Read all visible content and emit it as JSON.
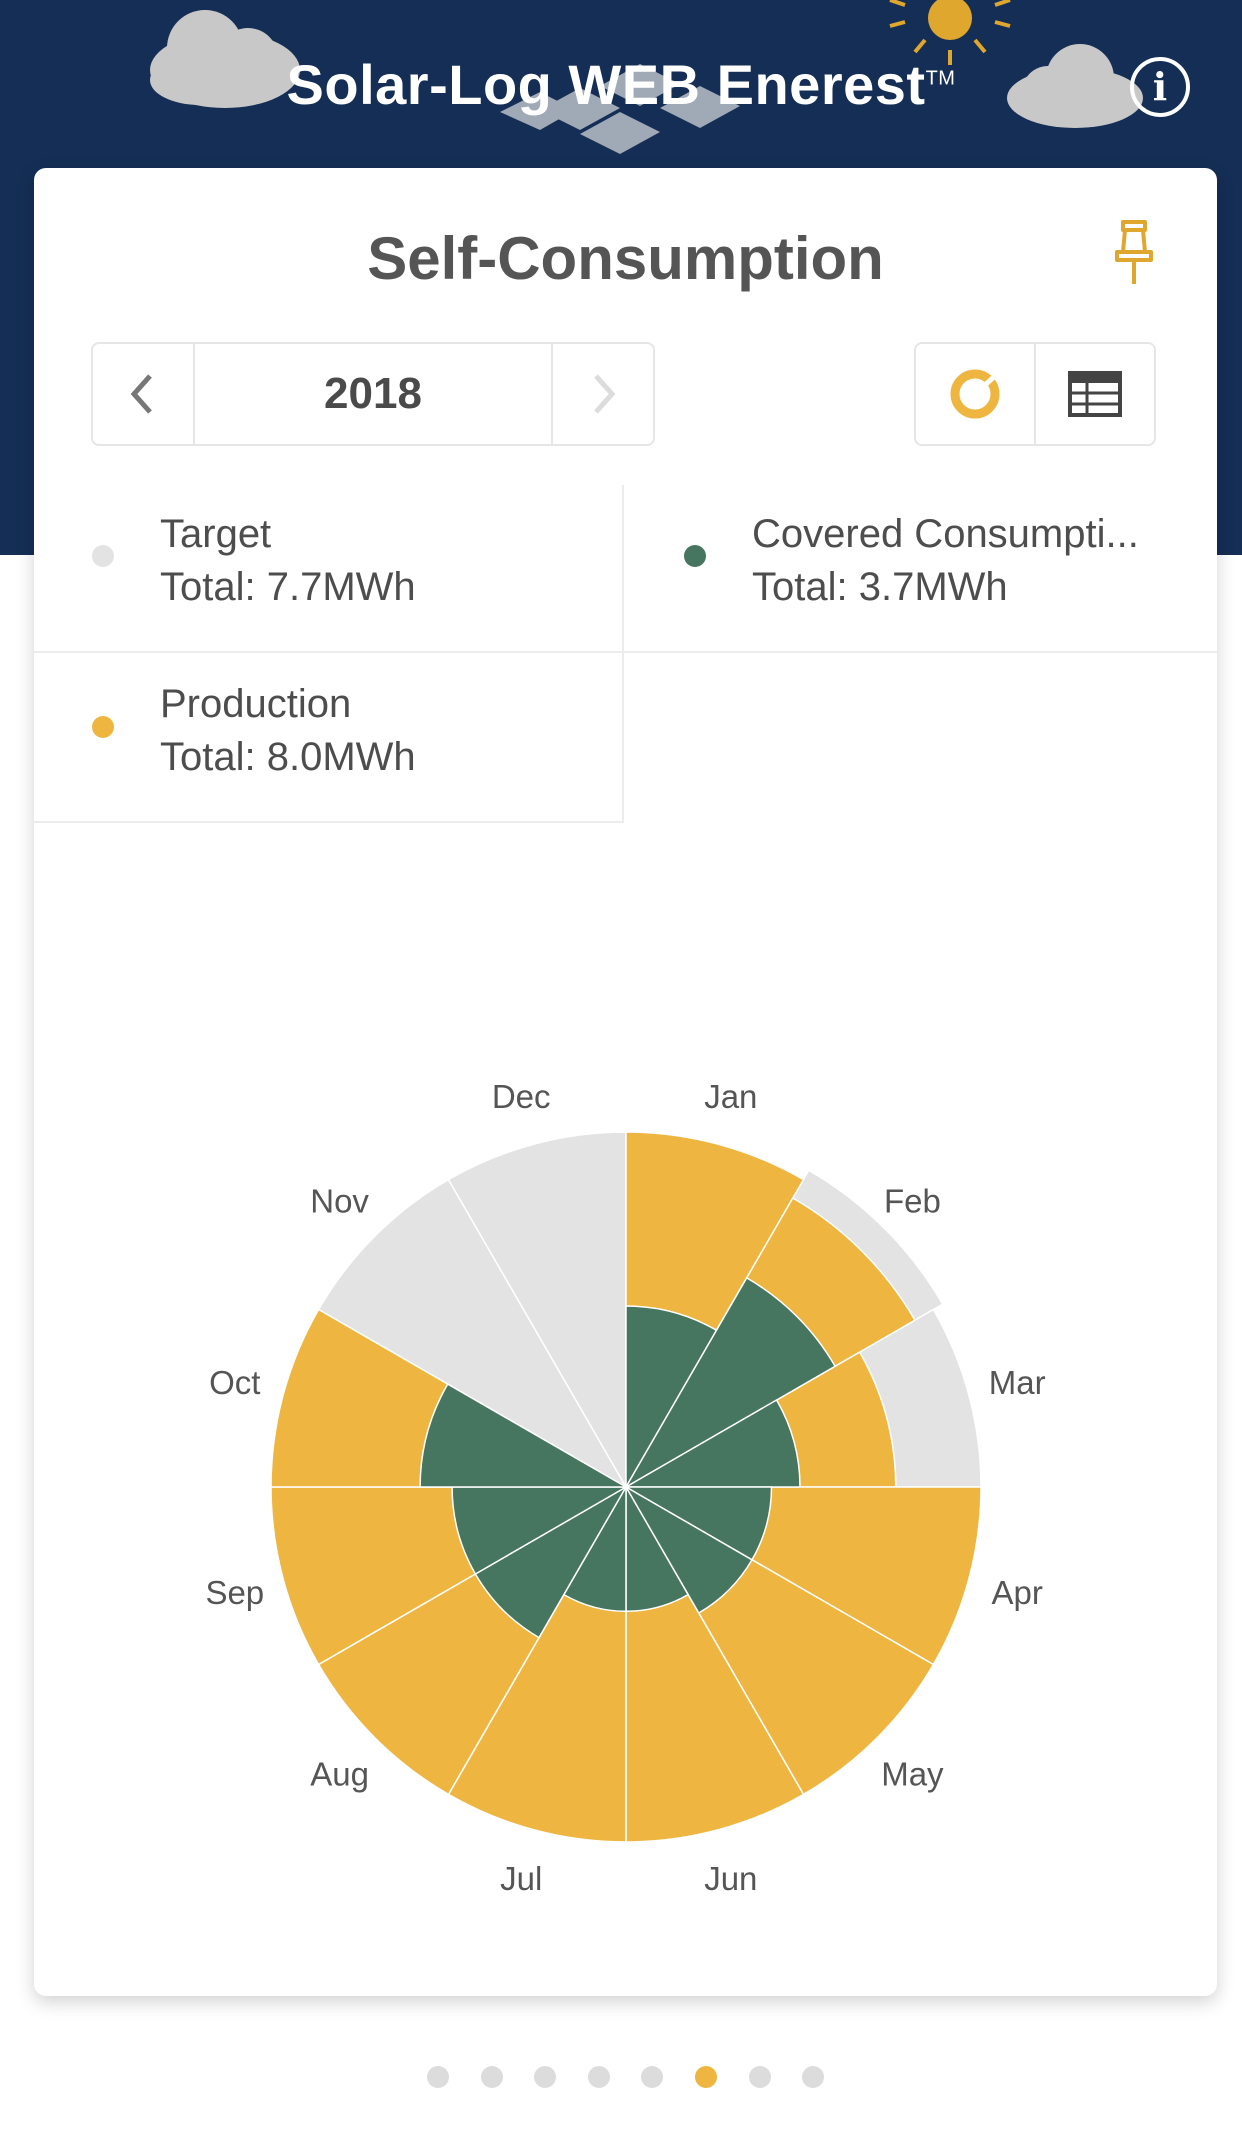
{
  "header": {
    "title": "Solar-Log WEB Enerest",
    "trademark": "TM",
    "info_icon": "info-icon",
    "bg_color": "#152e55"
  },
  "card": {
    "title": "Self-Consumption",
    "pin_icon": "pin-icon",
    "year_nav": {
      "prev_icon": "chevron-left-icon",
      "year": "2018",
      "next_icon": "chevron-right-icon"
    },
    "view_toggle": {
      "chart_icon": "donut-chart-icon",
      "table_icon": "table-icon",
      "active": "chart"
    }
  },
  "legend": [
    {
      "name": "Target",
      "total": "Total: 7.7MWh",
      "color": "#e3e3e3"
    },
    {
      "name": "Covered Consumpti...",
      "total": "Total: 3.7MWh",
      "color": "#477660"
    },
    {
      "name": "Production",
      "total": "Total: 8.0MWh",
      "color": "#eeb641"
    }
  ],
  "chart_data": {
    "type": "polar-area",
    "categories": [
      "Jan",
      "Feb",
      "Mar",
      "Apr",
      "May",
      "Jun",
      "Jul",
      "Aug",
      "Sep",
      "Oct",
      "Nov",
      "Dec"
    ],
    "series": [
      {
        "name": "Target",
        "color": "#e3e3e3",
        "values": [
          0.0,
          1.03,
          1.0,
          0.0,
          0.0,
          0.0,
          0.0,
          0.0,
          0.0,
          0.0,
          1.0,
          1.0
        ]
      },
      {
        "name": "Production",
        "color": "#eeb641",
        "values": [
          1.0,
          0.94,
          0.76,
          1.0,
          1.0,
          1.0,
          1.0,
          1.0,
          1.0,
          1.0,
          0.0,
          0.0
        ]
      },
      {
        "name": "Covered Consumption",
        "color": "#477660",
        "values": [
          0.51,
          0.68,
          0.49,
          0.41,
          0.41,
          0.35,
          0.35,
          0.49,
          0.49,
          0.58,
          0.0,
          0.0
        ]
      }
    ],
    "rlim": [
      0,
      1
    ],
    "grid": false,
    "legend_position": "top"
  },
  "pager": {
    "count": 8,
    "active_index": 5,
    "active_color": "#eeb641"
  }
}
